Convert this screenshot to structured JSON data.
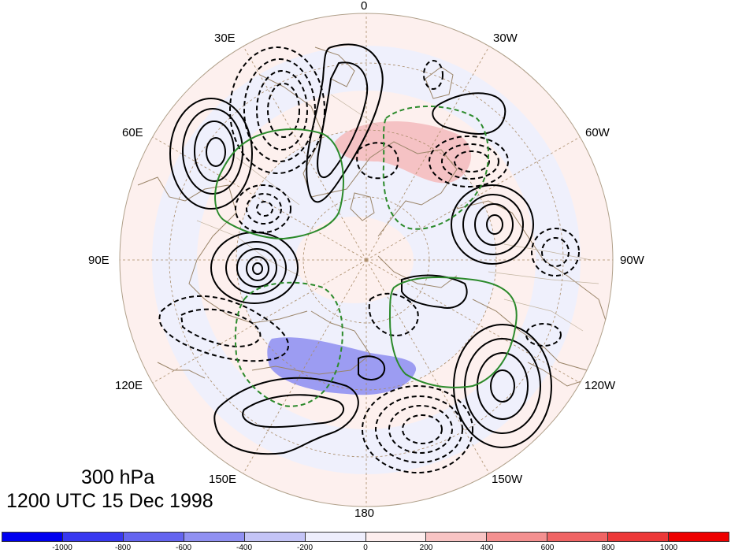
{
  "map": {
    "projection": "north polar stereographic",
    "level_label": "300 hPa",
    "time_label": "1200 UTC 15 Dec 1998",
    "longitude_labels": [
      "0",
      "30W",
      "60W",
      "90W",
      "120W",
      "150W",
      "180",
      "150E",
      "120E",
      "90E",
      "60E",
      "30E"
    ],
    "contour_styles": {
      "positive": "solid black",
      "negative": "dashed black",
      "highlight": "green"
    },
    "colors": {
      "coastline": "#9a8468",
      "gridline": "#a88a66",
      "border": "#b0a08a"
    }
  },
  "colorbar": {
    "tick_labels": [
      "-1000",
      "-800",
      "-600",
      "-400",
      "-200",
      "0",
      "200",
      "400",
      "600",
      "800",
      "1000"
    ],
    "colors": [
      "#0000f0",
      "#3838f0",
      "#6464f0",
      "#9090f2",
      "#c4c4f6",
      "#eeeefc",
      "#fdeeee",
      "#f8c4c4",
      "#f49090",
      "#f06464",
      "#ec3838",
      "#ee0000"
    ]
  }
}
